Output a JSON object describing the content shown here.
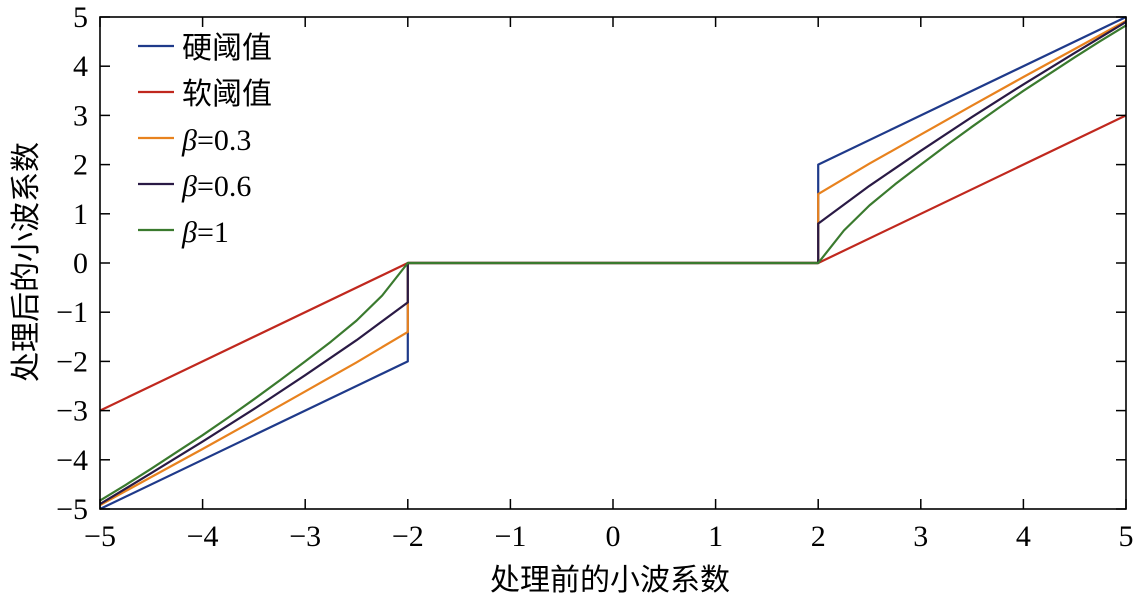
{
  "chart_data": {
    "type": "line",
    "title": "",
    "xlabel": "处理前的小波系数",
    "ylabel": "处理后的小波系数",
    "xlim": [
      -5,
      5
    ],
    "ylim": [
      -5,
      5
    ],
    "xticks": [
      -5,
      -4,
      -3,
      -2,
      -1,
      0,
      1,
      2,
      3,
      4,
      5
    ],
    "yticks": [
      -5,
      -4,
      -3,
      -2,
      -1,
      0,
      1,
      2,
      3,
      4,
      5
    ],
    "xtick_labels": [
      "−5",
      "−4",
      "−3",
      "−2",
      "−1",
      "0",
      "1",
      "2",
      "3",
      "4",
      "5"
    ],
    "ytick_labels": [
      "−5",
      "−4",
      "−3",
      "−2",
      "−1",
      "0",
      "1",
      "2",
      "3",
      "4",
      "5"
    ],
    "grid": false,
    "legend_position": "top-left",
    "series": [
      {
        "name": "硬阈值",
        "color": "#1f3a8a",
        "x": [
          -5,
          -2,
          -2,
          2,
          2,
          5
        ],
        "y": [
          -5,
          -2,
          0,
          0,
          2,
          5
        ]
      },
      {
        "name": "软阈值",
        "color": "#c0281e",
        "x": [
          -5,
          -2,
          2,
          5
        ],
        "y": [
          -3,
          0,
          0,
          3
        ]
      },
      {
        "name": "β=0.3",
        "color": "#e8821e",
        "x": [
          -5,
          -4.5,
          -4,
          -3.5,
          -3,
          -2.5,
          -2,
          -2,
          2,
          2,
          2.5,
          3,
          3.5,
          4,
          4.5,
          5
        ],
        "y": [
          -4.92,
          -4.35,
          -3.78,
          -3.2,
          -2.61,
          -2.02,
          -1.4,
          0,
          0,
          1.4,
          2.02,
          2.61,
          3.2,
          3.78,
          4.35,
          4.92
        ]
      },
      {
        "name": "β=0.6",
        "color": "#2a1a45",
        "x": [
          -5,
          -4.5,
          -4,
          -3.5,
          -3,
          -2.5,
          -2,
          -2,
          2,
          2,
          2.5,
          3,
          3.5,
          4,
          4.5,
          5
        ],
        "y": [
          -4.9,
          -4.27,
          -3.63,
          -2.97,
          -2.28,
          -1.57,
          -0.8,
          0,
          0,
          0.8,
          1.57,
          2.28,
          2.97,
          3.63,
          4.27,
          4.9
        ]
      },
      {
        "name": "β=1",
        "color": "#3a7a2e",
        "x": [
          -5,
          -4.75,
          -4.5,
          -4.25,
          -4,
          -3.75,
          -3.5,
          -3.25,
          -3,
          -2.75,
          -2.5,
          -2.25,
          -2,
          2,
          2.25,
          2.5,
          2.75,
          3,
          3.25,
          3.5,
          3.75,
          4,
          4.25,
          4.5,
          4.75,
          5
        ],
        "y": [
          -4.83,
          -4.51,
          -4.18,
          -3.84,
          -3.5,
          -3.14,
          -2.77,
          -2.39,
          -2.0,
          -1.6,
          -1.17,
          -0.66,
          0,
          0,
          0.66,
          1.17,
          1.6,
          2.0,
          2.39,
          2.77,
          3.14,
          3.5,
          3.84,
          4.18,
          4.51,
          4.83
        ]
      }
    ]
  }
}
